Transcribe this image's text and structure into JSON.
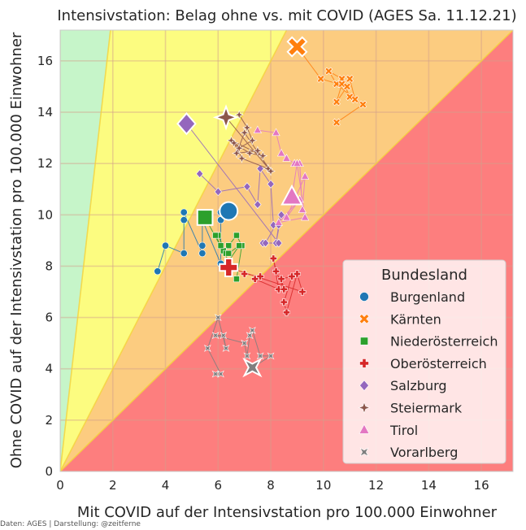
{
  "chart_data": {
    "type": "scatter",
    "title": "Intensivstation: Belag ohne vs. mit COVID (AGES Sa. 11.12.21)",
    "xlabel": "Mit COVID auf der Intensivstation pro 100.000 Einwohner",
    "ylabel": "Ohne COVID auf der Intensivstation pro 100.000 Einwohner",
    "xlim": [
      0,
      17.2
    ],
    "ylim": [
      0,
      17.2
    ],
    "xticks": [
      "0",
      "2",
      "4",
      "6",
      "8",
      "10",
      "12",
      "14",
      "16"
    ],
    "yticks": [
      "0",
      "2",
      "4",
      "6",
      "8",
      "10",
      "12",
      "14",
      "16"
    ],
    "grid": true,
    "credit": "Daten: AGES | Darstellung: @zeitferne",
    "zones": [
      {
        "color": "#c6f5c9",
        "lower_slope": 9.0,
        "upper_slope": null
      },
      {
        "color": "#fcfc80",
        "lower_slope": 2.0,
        "upper_slope": 9.0
      },
      {
        "color": "#fccc80",
        "lower_slope": 1.0,
        "upper_slope": 2.0
      },
      {
        "color": "#fd7e7e",
        "lower_slope": 0.0,
        "upper_slope": 1.0
      }
    ],
    "legend": {
      "title": "Bundesland",
      "position": "lower-right"
    },
    "series": [
      {
        "name": "Burgenland",
        "color": "#1f77b4",
        "marker": "circle",
        "x": [
          3.7,
          4.0,
          4.7,
          4.7,
          4.7,
          5.4,
          5.4,
          5.4,
          6.1,
          6.1,
          6.1,
          6.4
        ],
        "y": [
          7.8,
          8.8,
          8.5,
          9.8,
          10.1,
          8.5,
          8.8,
          9.8,
          8.1,
          9.8,
          10.1,
          10.15
        ]
      },
      {
        "name": "Kärnten",
        "color": "#ff7f0e",
        "marker": "x",
        "x": [
          10.5,
          11.5,
          11.0,
          10.7,
          10.2,
          10.5,
          11.2,
          11.0,
          10.7,
          10.5,
          10.9,
          9.9,
          9.0
        ],
        "y": [
          13.6,
          14.3,
          14.6,
          15.3,
          15.6,
          15.1,
          14.5,
          15.3,
          15.1,
          14.4,
          15.0,
          15.3,
          16.55
        ]
      },
      {
        "name": "Niederösterreich",
        "color": "#2ca02c",
        "marker": "square",
        "x": [
          6.7,
          6.9,
          6.7,
          6.4,
          6.2,
          6.3,
          6.0,
          5.9,
          6.1,
          6.4,
          6.8,
          6.4,
          5.5
        ],
        "y": [
          7.5,
          8.8,
          9.2,
          8.8,
          8.6,
          8.5,
          9.2,
          9.2,
          8.8,
          8.5,
          8.8,
          8.2,
          9.9
        ]
      },
      {
        "name": "Oberösterreich",
        "color": "#d62728",
        "marker": "plus",
        "x": [
          7.0,
          7.6,
          7.4,
          8.3,
          8.1,
          8.2,
          8.5,
          8.4,
          8.8,
          8.5,
          8.6,
          9.0,
          9.2,
          6.4
        ],
        "y": [
          7.7,
          7.6,
          7.5,
          7.1,
          8.3,
          7.8,
          7.1,
          7.5,
          7.6,
          6.6,
          6.2,
          7.7,
          7.0,
          7.95
        ]
      },
      {
        "name": "Salzburg",
        "color": "#9467bd",
        "marker": "diamond",
        "x": [
          5.3,
          6.0,
          7.1,
          7.5,
          7.5,
          7.6,
          8.0,
          8.1,
          8.3,
          8.2,
          8.4,
          7.8,
          7.7,
          7.8,
          8.3,
          4.8
        ],
        "y": [
          11.6,
          10.9,
          11.1,
          10.4,
          10.4,
          11.8,
          11.2,
          9.6,
          9.6,
          8.9,
          10.0,
          8.9,
          8.9,
          8.9,
          8.9,
          13.55
        ]
      },
      {
        "name": "Steiermark",
        "color": "#8c564b",
        "marker": "star",
        "x": [
          6.8,
          7.1,
          7.3,
          6.8,
          6.5,
          7.7,
          7.2,
          6.6,
          6.9,
          7.9,
          7.5,
          6.7,
          7.0,
          8.0,
          6.3
        ],
        "y": [
          13.9,
          13.4,
          12.9,
          12.6,
          12.9,
          12.3,
          12.4,
          12.8,
          12.2,
          11.8,
          12.5,
          12.4,
          13.2,
          11.7,
          13.8
        ]
      },
      {
        "name": "Tirol",
        "color": "#e377c2",
        "marker": "triangle",
        "x": [
          7.5,
          8.2,
          8.4,
          8.6,
          8.9,
          9.1,
          9.2,
          9.3,
          8.6,
          9.1,
          8.3,
          9.3,
          9.0,
          8.8
        ],
        "y": [
          13.3,
          13.2,
          12.4,
          12.2,
          12.0,
          12.0,
          10.2,
          11.5,
          9.9,
          10.6,
          9.7,
          9.9,
          12.0,
          10.7
        ]
      },
      {
        "name": "Vorarlberg",
        "color": "#7f7f7f",
        "marker": "star4",
        "x": [
          5.9,
          6.1,
          5.6,
          6.0,
          6.3,
          6.2,
          5.9,
          7.0,
          7.1,
          7.2,
          7.3,
          7.6,
          8.0,
          7.3
        ],
        "y": [
          3.8,
          3.8,
          4.8,
          6.0,
          4.8,
          5.3,
          5.3,
          5.0,
          4.5,
          5.3,
          5.5,
          4.5,
          4.5,
          4.05
        ]
      }
    ]
  }
}
